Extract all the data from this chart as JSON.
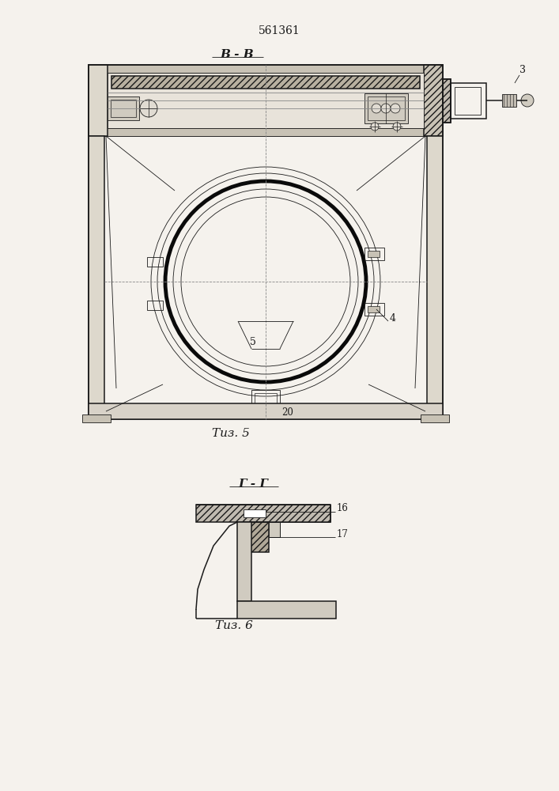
{
  "patent_number": "561361",
  "fig5_label": "B - B",
  "fig5_caption": "Τиз. 5",
  "fig6_label": "Г - Г",
  "fig6_caption": "Τиз. 6",
  "label_3": "3",
  "label_4": "4",
  "label_5": "5",
  "label_20": "20",
  "label_16": "16",
  "label_17": "17",
  "bg_color": "#f5f2ed",
  "line_color": "#1a1a1a",
  "hatch_color": "#1a1a1a"
}
